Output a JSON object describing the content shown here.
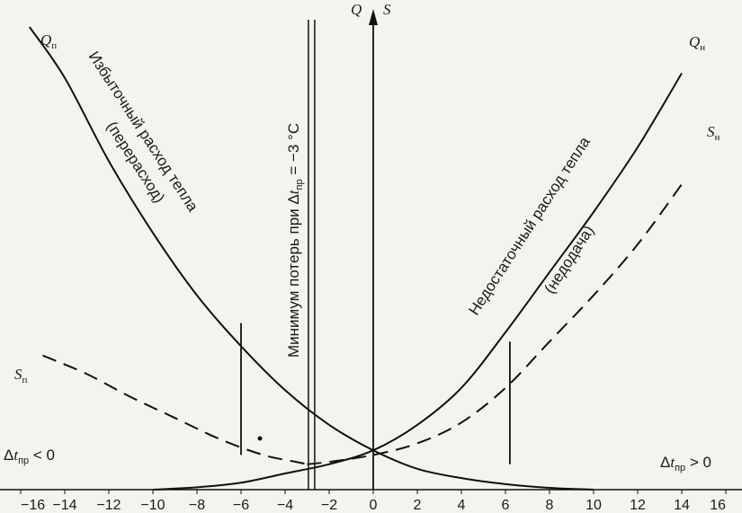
{
  "chart_data": {
    "type": "line",
    "x_ticks": [
      -16,
      -14,
      -12,
      -10,
      -8,
      -6,
      -4,
      -2,
      0,
      2,
      4,
      6,
      8,
      10,
      12,
      14,
      16
    ],
    "xlim": [
      -16,
      16
    ],
    "axis_labels": {
      "q": "Q",
      "s": "S"
    },
    "series": [
      {
        "name": "Qп",
        "label_main": "Q",
        "label_sub": "п",
        "style": "solid",
        "points": [
          [
            -15.6,
            1.0
          ],
          [
            -14,
            0.89
          ],
          [
            -12,
            0.71
          ],
          [
            -10,
            0.555
          ],
          [
            -8,
            0.42
          ],
          [
            -6,
            0.31
          ],
          [
            -4,
            0.215
          ],
          [
            -2,
            0.14
          ],
          [
            0,
            0.085
          ],
          [
            2,
            0.045
          ],
          [
            4,
            0.025
          ],
          [
            6,
            0.012
          ],
          [
            8,
            0.004
          ],
          [
            10,
            0.0
          ]
        ]
      },
      {
        "name": "Qн",
        "label_main": "Q",
        "label_sub": "н",
        "style": "solid",
        "points": [
          [
            -10,
            0.0
          ],
          [
            -8,
            0.005
          ],
          [
            -6,
            0.015
          ],
          [
            -4,
            0.035
          ],
          [
            -2,
            0.055
          ],
          [
            0,
            0.085
          ],
          [
            2,
            0.14
          ],
          [
            4,
            0.22
          ],
          [
            6,
            0.34
          ],
          [
            8,
            0.47
          ],
          [
            10,
            0.6
          ],
          [
            12,
            0.74
          ],
          [
            14,
            0.9
          ]
        ]
      },
      {
        "name": "Sп",
        "label_main": "S",
        "label_sub": "п",
        "style": "dashed",
        "points": [
          [
            -15,
            0.29
          ],
          [
            -13,
            0.25
          ],
          [
            -11,
            0.2
          ],
          [
            -9,
            0.155
          ],
          [
            -7,
            0.11
          ],
          [
            -5,
            0.075
          ],
          [
            -3.5,
            0.06
          ],
          [
            -3,
            0.055
          ]
        ]
      },
      {
        "name": "Sн",
        "label_main": "S",
        "label_sub": "н",
        "style": "dashed",
        "points": [
          [
            -3,
            0.055
          ],
          [
            -2,
            0.06
          ],
          [
            0,
            0.075
          ],
          [
            2,
            0.1
          ],
          [
            4,
            0.145
          ],
          [
            6,
            0.22
          ],
          [
            8,
            0.32
          ],
          [
            10,
            0.42
          ],
          [
            12,
            0.53
          ],
          [
            14,
            0.66
          ]
        ]
      }
    ],
    "markers": [
      {
        "x": -6,
        "y_from": 0.075,
        "y_to": 0.36
      },
      {
        "x": 6.2,
        "y_from": 0.055,
        "y_to": 0.32
      }
    ],
    "min_line_x": -2.8,
    "annotations": {
      "excess": "Избыточный расход тепла",
      "excess_sub": "(перерасход)",
      "deficit": "Недостаточный расход тепла",
      "deficit_sub": "(недодача)",
      "min_prefix": "Минимум потерь при Δ",
      "min_var": "t",
      "min_sub": "пр",
      "min_suffix": " = −3 °С",
      "left_delta": "Δ",
      "left_var": "t",
      "left_sub": "пр",
      "left_rel": " < 0",
      "right_delta": "Δ",
      "right_var": "t",
      "right_sub": "пр",
      "right_rel": " > 0"
    }
  }
}
